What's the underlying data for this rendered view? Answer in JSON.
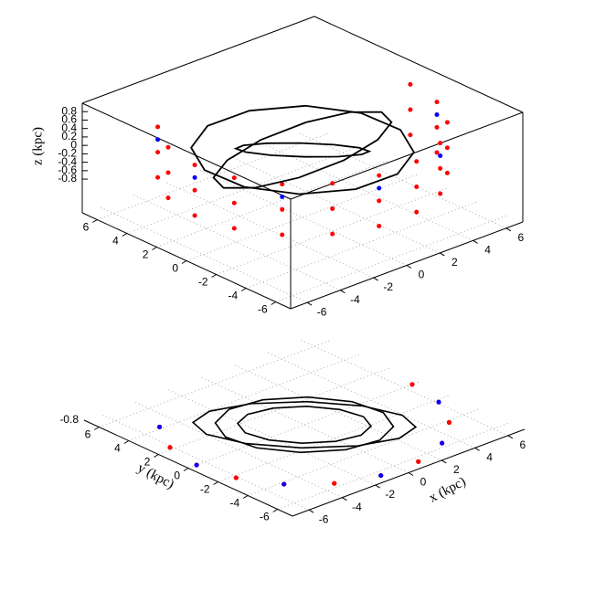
{
  "chart_data": {
    "type": "scatter3d",
    "xlabel": "x (kpc)",
    "ylabel": "y (kpc)",
    "zlabel": "z (kpc)",
    "xlim": [
      -7,
      7
    ],
    "ylim": [
      -7,
      7
    ],
    "zlim": [
      -1.6,
      1.0
    ],
    "xticks": [
      -6,
      -4,
      -2,
      0,
      2,
      4,
      6
    ],
    "yticks": [
      -6,
      -4,
      -2,
      0,
      2,
      4,
      6
    ],
    "zticks": [
      -0.8,
      -0.6,
      -0.4,
      -0.2,
      0,
      0.2,
      0.4,
      0.6,
      0.8
    ],
    "grid": true,
    "base_projection": true,
    "series": [
      {
        "color": "#ff0000",
        "style": "points",
        "x": [
          -4.98,
          -6.11,
          -6.5,
          -6.11,
          -4.98,
          -3.25,
          -1.13,
          1.13,
          3.25,
          4.98,
          6.11,
          6.5,
          -4.98,
          -6.11,
          -6.5,
          -6.11,
          -4.98,
          -3.25,
          -1.13,
          1.13,
          3.25,
          4.98,
          6.11,
          6.5,
          -4.98,
          -6.11,
          -6.5,
          -6.11,
          -4.98,
          -3.25,
          -1.13,
          1.13,
          3.25,
          4.98,
          6.11,
          6.5
        ],
        "y": [
          4.18,
          2.22,
          0,
          -2.22,
          -4.18,
          -5.63,
          -6.4,
          -6.4,
          -5.63,
          -4.18,
          -2.22,
          0,
          4.18,
          2.22,
          0,
          -2.22,
          -4.18,
          -5.63,
          -6.4,
          -6.4,
          -5.63,
          -4.18,
          -2.22,
          0,
          4.18,
          2.22,
          0,
          -2.22,
          -4.18,
          -5.63,
          -6.4,
          -6.4,
          -5.63,
          -4.18,
          -2.22,
          0
        ],
        "z": [
          -0.6,
          -0.6,
          -0.6,
          -0.6,
          -0.6,
          -0.6,
          -0.6,
          -0.6,
          -0.6,
          -0.6,
          -0.6,
          -0.6,
          0,
          0,
          0,
          0,
          0,
          0,
          0,
          0,
          0,
          0,
          0,
          0,
          0.6,
          0.6,
          0.6,
          0.6,
          0.6,
          0.6,
          0.6,
          0.6,
          0.6,
          0.6,
          0.6,
          0.6
        ]
      },
      {
        "color": "#0000ff",
        "style": "points",
        "x": [
          -4.98,
          -6.5,
          -4.98,
          -1.13,
          3.25,
          6.11
        ],
        "y": [
          4.18,
          0,
          -4.18,
          -6.4,
          -5.63,
          -2.22
        ],
        "z": [
          0.3,
          0.3,
          0.3,
          0.3,
          0.3,
          0.3
        ]
      },
      {
        "color": "#000000",
        "style": "lines",
        "x": [
          3.54,
          3.95,
          3.3,
          1.77,
          -0.24,
          -2.18,
          -3.54,
          -3.95,
          -3.3,
          -1.77,
          0.24,
          2.18
        ],
        "y": [
          -3.54,
          -2.18,
          -0.24,
          1.77,
          3.3,
          3.95,
          3.54,
          2.18,
          0.24,
          -1.77,
          -3.3,
          -3.95
        ],
        "z": [
          0,
          0.25,
          0.43,
          0.5,
          0.43,
          0.25,
          0,
          -0.25,
          -0.43,
          -0.5,
          -0.43,
          -0.25
        ]
      },
      {
        "color": "#000000",
        "style": "lines",
        "x": [
          2.83,
          3.51,
          3.26,
          2.12,
          0.42,
          -1.39,
          -2.83,
          -3.51,
          -3.26,
          -2.12,
          -0.42,
          1.39
        ],
        "y": [
          -2.83,
          -1.39,
          0.42,
          2.12,
          3.26,
          3.51,
          2.83,
          1.39,
          -0.42,
          -2.12,
          -3.26,
          -3.51
        ],
        "z": [
          0.7,
          0.61,
          0.35,
          0,
          -0.35,
          -0.61,
          -0.7,
          -0.61,
          -0.35,
          0,
          0.35,
          0.61
        ]
      },
      {
        "color": "#000000",
        "style": "lines",
        "x": [
          2.12,
          2.55,
          2.28,
          1.41,
          0.16,
          -1.13,
          -2.12,
          -2.55,
          -2.28,
          -1.41,
          -0.16,
          1.13
        ],
        "y": [
          -2.12,
          -1.13,
          0.16,
          1.41,
          2.28,
          2.55,
          2.12,
          1.13,
          -0.16,
          -1.41,
          -2.28,
          -2.55
        ],
        "z": [
          0,
          -0.3,
          -0.52,
          -0.6,
          -0.52,
          -0.3,
          0,
          0.3,
          0.52,
          0.6,
          0.52,
          0.3
        ]
      }
    ]
  }
}
